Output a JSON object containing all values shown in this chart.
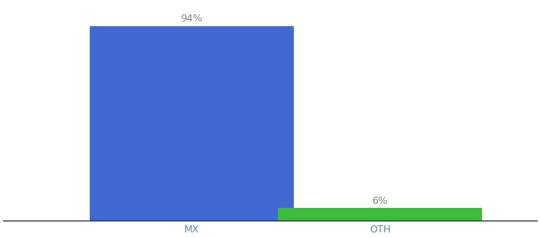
{
  "categories": [
    "MX",
    "OTH"
  ],
  "values": [
    94,
    6
  ],
  "bar_colors": [
    "#4169d4",
    "#3dbb3d"
  ],
  "value_labels": [
    "94%",
    "6%"
  ],
  "background_color": "#ffffff",
  "label_color": "#888888",
  "label_fontsize": 9,
  "tick_fontsize": 9,
  "tick_color": "#6688aa",
  "ylim": [
    0,
    105
  ],
  "bar_width": 0.65,
  "xlim": [
    -0.1,
    1.6
  ]
}
